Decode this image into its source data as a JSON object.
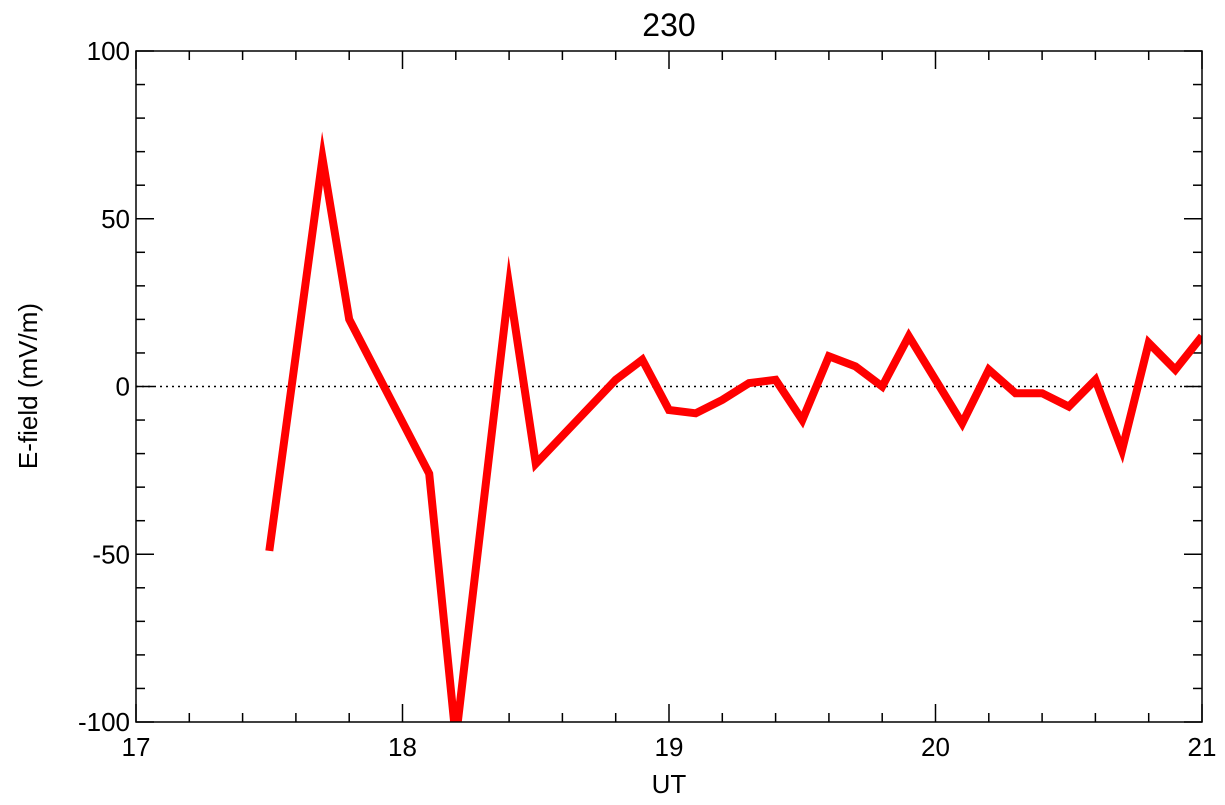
{
  "chart_data": {
    "type": "line",
    "title": "230",
    "xlabel": "UT",
    "ylabel": "E-field (mV/m)",
    "xlim": [
      17,
      21
    ],
    "ylim": [
      -100,
      100
    ],
    "xticks": [
      17,
      18,
      19,
      20,
      21
    ],
    "xtick_labels": [
      "17",
      "18",
      "19",
      "20",
      "21"
    ],
    "yticks": [
      -100,
      -50,
      0,
      50,
      100
    ],
    "ytick_labels": [
      "-100",
      "-50",
      "0",
      "50",
      "100"
    ],
    "x_minor_step": 0.2,
    "y_minor_step": 10,
    "zero_line": {
      "value": 0,
      "style": "dotted"
    },
    "grid": false,
    "series": [
      {
        "color": "#ff0000",
        "x": [
          17.5,
          17.7,
          17.8,
          18.1,
          18.2,
          18.4,
          18.5,
          18.8,
          18.9,
          19.0,
          19.1,
          19.2,
          19.3,
          19.4,
          19.5,
          19.6,
          19.7,
          19.8,
          19.9,
          20.1,
          20.2,
          20.3,
          20.4,
          20.5,
          20.6,
          20.7,
          20.8,
          20.9,
          21.0
        ],
        "y": [
          -49,
          68,
          20,
          -26,
          -105,
          30,
          -23,
          2,
          8,
          -7,
          -8,
          -4,
          1,
          2,
          -10,
          9,
          6,
          0,
          15,
          -11,
          5,
          -2,
          -2,
          -6,
          2,
          -19,
          13,
          5,
          15
        ]
      }
    ]
  }
}
